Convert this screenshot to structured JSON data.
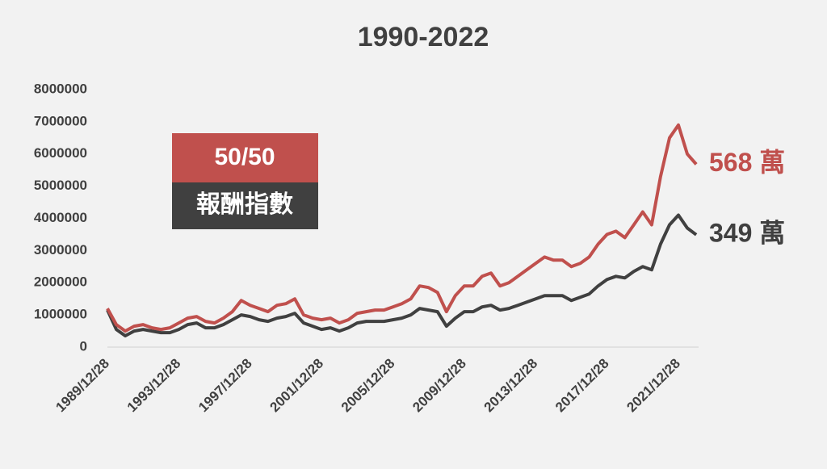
{
  "chart_data": {
    "type": "line",
    "title": "1990-2022",
    "box": {
      "top": "50/50",
      "bottom": "報酬指數"
    },
    "categories": [
      "1989/12/28",
      null,
      null,
      null,
      null,
      null,
      null,
      null,
      "1993/12/28",
      null,
      null,
      null,
      null,
      null,
      null,
      null,
      "1997/12/28",
      null,
      null,
      null,
      null,
      null,
      null,
      null,
      "2001/12/28",
      null,
      null,
      null,
      null,
      null,
      null,
      null,
      "2005/12/28",
      null,
      null,
      null,
      null,
      null,
      null,
      null,
      "2009/12/28",
      null,
      null,
      null,
      null,
      null,
      null,
      null,
      "2013/12/28",
      null,
      null,
      null,
      null,
      null,
      null,
      null,
      "2017/12/28",
      null,
      null,
      null,
      null,
      null,
      null,
      null,
      "2021/12/28",
      null,
      null
    ],
    "series": [
      {
        "name": "50/50",
        "color": "#c0504d",
        "end_label": "568 萬",
        "values": [
          1200000,
          700000,
          500000,
          650000,
          700000,
          600000,
          550000,
          600000,
          750000,
          900000,
          950000,
          800000,
          750000,
          900000,
          1100000,
          1450000,
          1300000,
          1200000,
          1100000,
          1300000,
          1350000,
          1500000,
          1000000,
          900000,
          850000,
          900000,
          750000,
          850000,
          1050000,
          1100000,
          1150000,
          1150000,
          1250000,
          1350000,
          1500000,
          1900000,
          1850000,
          1700000,
          1100000,
          1600000,
          1900000,
          1900000,
          2200000,
          2300000,
          1900000,
          2000000,
          2200000,
          2400000,
          2600000,
          2800000,
          2700000,
          2700000,
          2500000,
          2600000,
          2800000,
          3200000,
          3500000,
          3600000,
          3400000,
          3800000,
          4200000,
          3800000,
          5300000,
          6500000,
          6900000,
          6000000,
          5680000
        ]
      },
      {
        "name": "報酬指數",
        "color": "#404040",
        "end_label": "349 萬",
        "values": [
          1150000,
          550000,
          350000,
          500000,
          550000,
          500000,
          450000,
          450000,
          550000,
          700000,
          750000,
          600000,
          600000,
          700000,
          850000,
          1000000,
          950000,
          850000,
          800000,
          900000,
          950000,
          1050000,
          750000,
          650000,
          550000,
          600000,
          500000,
          600000,
          750000,
          800000,
          800000,
          800000,
          850000,
          900000,
          1000000,
          1200000,
          1150000,
          1100000,
          650000,
          900000,
          1100000,
          1100000,
          1250000,
          1300000,
          1150000,
          1200000,
          1300000,
          1400000,
          1500000,
          1600000,
          1600000,
          1600000,
          1450000,
          1550000,
          1650000,
          1900000,
          2100000,
          2200000,
          2150000,
          2350000,
          2500000,
          2400000,
          3200000,
          3800000,
          4100000,
          3700000,
          3490000
        ]
      }
    ],
    "ylim": [
      0,
      8000000
    ],
    "yticks": [
      0,
      1000000,
      2000000,
      3000000,
      4000000,
      5000000,
      6000000,
      7000000,
      8000000
    ],
    "grid": false
  }
}
